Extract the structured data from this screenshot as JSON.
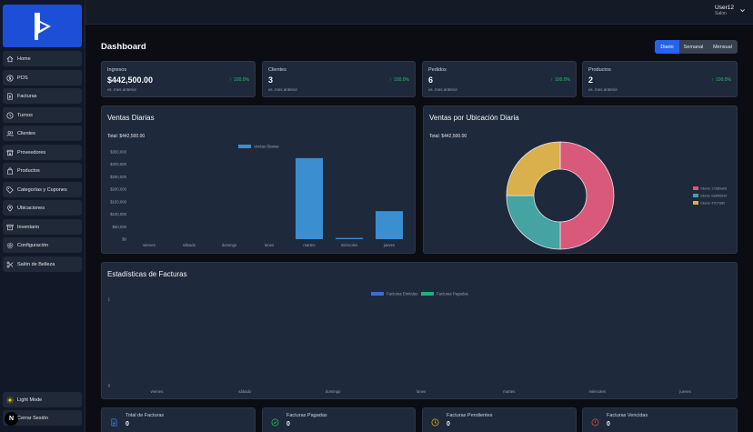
{
  "sidebar": {
    "items": [
      {
        "label": "Home",
        "icon": "home-icon"
      },
      {
        "label": "POS",
        "icon": "dollar-icon"
      },
      {
        "label": "Facturas",
        "icon": "invoice-icon"
      },
      {
        "label": "Turnos",
        "icon": "clock-icon"
      },
      {
        "label": "Clientes",
        "icon": "users-icon"
      },
      {
        "label": "Proveedores",
        "icon": "store-icon"
      },
      {
        "label": "Productos",
        "icon": "bag-icon"
      },
      {
        "label": "Categorías y Cupones",
        "icon": "tag-icon"
      },
      {
        "label": "Ubicaciones",
        "icon": "pin-icon"
      },
      {
        "label": "Inventario",
        "icon": "archive-icon"
      },
      {
        "label": "Configuración",
        "icon": "gear-icon"
      },
      {
        "label": "Salón de Belleza",
        "icon": "scissors-icon"
      }
    ],
    "light_mode": "Light Mode",
    "logout": "Cerrar Sesión"
  },
  "user": {
    "name": "User12",
    "role": "Salon"
  },
  "page": {
    "title": "Dashboard"
  },
  "period_tabs": [
    "Diario",
    "Semanal",
    "Mensual"
  ],
  "active_period": "Diario",
  "stats": [
    {
      "label": "Ingresos",
      "value": "$442,500.00",
      "trend": "100.0%",
      "sub": "vs. mes anterior"
    },
    {
      "label": "Clientes",
      "value": "3",
      "trend": "100.0%",
      "sub": "vs. mes anterior"
    },
    {
      "label": "Pedidos",
      "value": "6",
      "trend": "100.0%",
      "sub": "vs. mes anterior"
    },
    {
      "label": "Productos",
      "value": "2",
      "trend": "100.0%",
      "sub": "vs. mes anterior"
    }
  ],
  "sales": {
    "title": "Ventas Diarias",
    "total": "Total: $442,500.00"
  },
  "location": {
    "title": "Ventas por Ubicación Diaria",
    "total": "Total: $442,500.00"
  },
  "invoices": {
    "title": "Estadísticas de Facturas"
  },
  "bottom_cards": [
    {
      "label": "Total de Facturas",
      "value": "0",
      "icon": "document-icon",
      "color": "#3b82f6"
    },
    {
      "label": "Facturas Pagadas",
      "value": "0",
      "icon": "check-circle-icon",
      "color": "#22c55e"
    },
    {
      "label": "Facturas Pendientes",
      "value": "0",
      "icon": "clock-icon",
      "color": "#eab308"
    },
    {
      "label": "Facturas Vencidas",
      "value": "0",
      "icon": "alert-circle-icon",
      "color": "#ef4444"
    }
  ],
  "chart_data": [
    {
      "type": "bar",
      "title": "Ventas Diarias",
      "categories": [
        "viernes",
        "sábado",
        "domingo",
        "lunes",
        "martes",
        "miércoles",
        "jueves"
      ],
      "series": [
        {
          "name": "Ventas Diarias",
          "values": [
            0,
            0,
            0,
            0,
            325000,
            5000,
            112500
          ],
          "color": "#3b8fd0"
        }
      ],
      "yticks": [
        "$0",
        "$50,000",
        "$100,000",
        "$150,000",
        "$200,000",
        "$250,000",
        "$300,000",
        "$350,000"
      ],
      "ylim": [
        0,
        350000
      ],
      "legend": "top"
    },
    {
      "type": "pie",
      "title": "Ventas por Ubicación Diaria",
      "labels": [
        "Cliente 1728f0a08",
        "Cliente 0a9f850d4",
        "Cliente 47f17d80"
      ],
      "values": [
        0.5,
        0.25,
        0.25
      ],
      "colors": [
        "#d9597b",
        "#45a3a3",
        "#d9b04c"
      ],
      "donut": true,
      "legend": "right"
    },
    {
      "type": "bar",
      "title": "Estadísticas de Facturas",
      "categories": [
        "viernes",
        "sábado",
        "domingo",
        "lunes",
        "martes",
        "miércoles",
        "jueves"
      ],
      "series": [
        {
          "name": "Facturas Emitidas",
          "values": [
            0,
            0,
            0,
            0,
            0,
            0,
            0
          ],
          "color": "#3b6fd0"
        },
        {
          "name": "Facturas Pagadas",
          "values": [
            0,
            0,
            0,
            0,
            0,
            0,
            0
          ],
          "color": "#22b07a"
        }
      ],
      "yticks": [
        "0",
        "1"
      ],
      "ylim": [
        0,
        1
      ],
      "legend": "top"
    }
  ],
  "colors": {
    "accent": "#2563eb",
    "brand": "#1d4ed8",
    "positive": "#22c55e"
  }
}
